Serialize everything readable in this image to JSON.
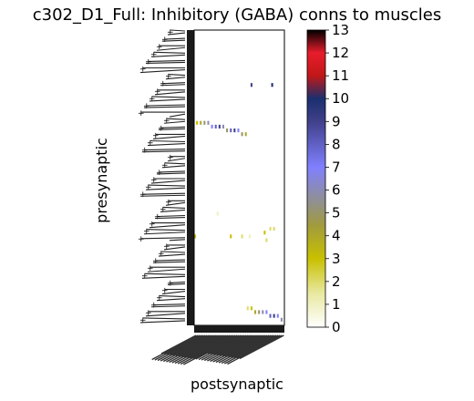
{
  "chart_data": {
    "type": "heatmap",
    "title": "c302_D1_Full: Inhibitory (GABA) conns to muscles",
    "xlabel": "postsynaptic",
    "ylabel": "presynaptic",
    "colorbar": {
      "min": 0,
      "max": 13,
      "ticks": [
        0,
        1,
        2,
        3,
        4,
        5,
        6,
        7,
        8,
        9,
        10,
        11,
        12,
        13
      ],
      "stops": [
        {
          "value": 0,
          "color": "#ffffff"
        },
        {
          "value": 1.5,
          "color": "#e8e8a0"
        },
        {
          "value": 3,
          "color": "#c8c000"
        },
        {
          "value": 4.5,
          "color": "#a09a40"
        },
        {
          "value": 5.5,
          "color": "#909090"
        },
        {
          "value": 7,
          "color": "#8080ff"
        },
        {
          "value": 9,
          "color": "#40408a"
        },
        {
          "value": 10,
          "color": "#1a2f6e"
        },
        {
          "value": 11,
          "color": "#c01818"
        },
        {
          "value": 12,
          "color": "#e81c2c"
        },
        {
          "value": 13,
          "color": "#000000"
        }
      ]
    },
    "grid": false,
    "n_rows": 78,
    "n_cols": 48,
    "cells": [
      {
        "row": 14,
        "col": 30,
        "value": 9
      },
      {
        "row": 14,
        "col": 41,
        "value": 10
      },
      {
        "row": 24,
        "col": 1,
        "value": 3
      },
      {
        "row": 24,
        "col": 3,
        "value": 4
      },
      {
        "row": 24,
        "col": 5,
        "value": 5
      },
      {
        "row": 24,
        "col": 7,
        "value": 6
      },
      {
        "row": 25,
        "col": 9,
        "value": 7
      },
      {
        "row": 25,
        "col": 11,
        "value": 8
      },
      {
        "row": 25,
        "col": 13,
        "value": 9
      },
      {
        "row": 25,
        "col": 15,
        "value": 6
      },
      {
        "row": 26,
        "col": 17,
        "value": 5
      },
      {
        "row": 26,
        "col": 19,
        "value": 8
      },
      {
        "row": 26,
        "col": 21,
        "value": 9
      },
      {
        "row": 26,
        "col": 23,
        "value": 7
      },
      {
        "row": 27,
        "col": 25,
        "value": 5
      },
      {
        "row": 27,
        "col": 27,
        "value": 4
      },
      {
        "row": 48,
        "col": 12,
        "value": 1
      },
      {
        "row": 52,
        "col": 40,
        "value": 2
      },
      {
        "row": 52,
        "col": 42,
        "value": 2
      },
      {
        "row": 53,
        "col": 37,
        "value": 3
      },
      {
        "row": 54,
        "col": 0,
        "value": 3
      },
      {
        "row": 54,
        "col": 19,
        "value": 3
      },
      {
        "row": 54,
        "col": 25,
        "value": 2
      },
      {
        "row": 54,
        "col": 29,
        "value": 1
      },
      {
        "row": 55,
        "col": 38,
        "value": 2
      },
      {
        "row": 73,
        "col": 28,
        "value": 2
      },
      {
        "row": 73,
        "col": 30,
        "value": 3
      },
      {
        "row": 74,
        "col": 32,
        "value": 4
      },
      {
        "row": 74,
        "col": 34,
        "value": 5
      },
      {
        "row": 74,
        "col": 36,
        "value": 6
      },
      {
        "row": 74,
        "col": 38,
        "value": 7
      },
      {
        "row": 75,
        "col": 40,
        "value": 8
      },
      {
        "row": 75,
        "col": 42,
        "value": 9
      },
      {
        "row": 75,
        "col": 44,
        "value": 7
      },
      {
        "row": 76,
        "col": 46,
        "value": 6
      }
    ]
  }
}
